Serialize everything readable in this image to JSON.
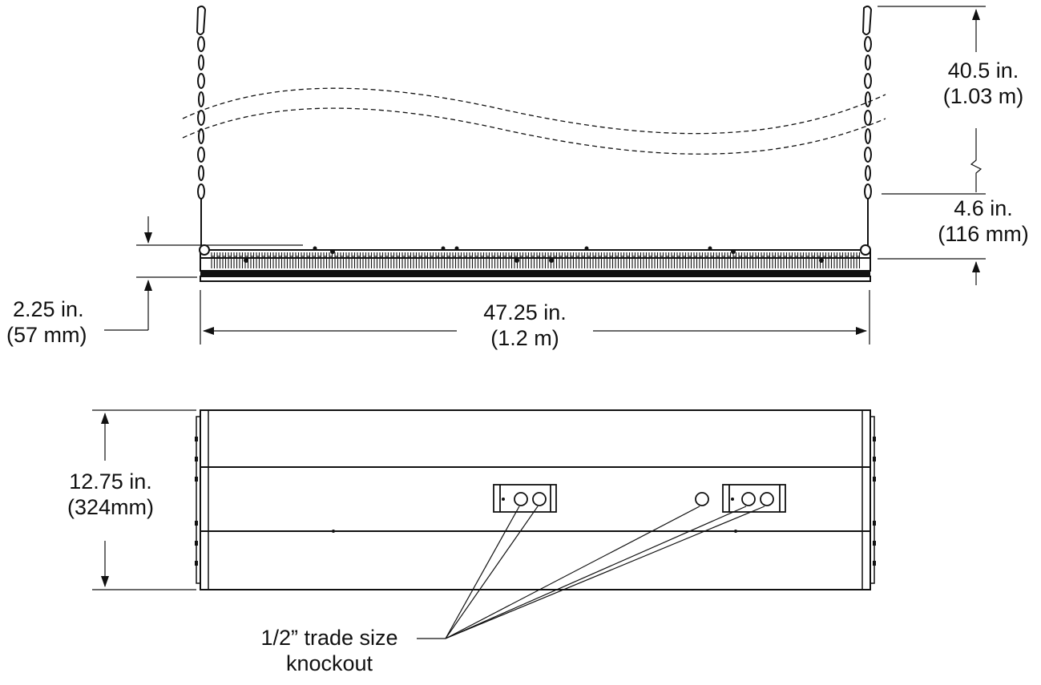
{
  "dimensions": {
    "chain_length": {
      "imperial": "40.5 in.",
      "metric": "(1.03 m)"
    },
    "hook_height": {
      "imperial": "4.6 in.",
      "metric": "(116 mm)"
    },
    "fixture_height": {
      "imperial": "2.25 in.",
      "metric": "(57 mm)"
    },
    "fixture_length": {
      "imperial": "47.25 in.",
      "metric": "(1.2 m)"
    },
    "fixture_width": {
      "imperial": "12.75 in.",
      "metric": "(324mm)"
    }
  },
  "callout": {
    "line1": "1/2” trade size",
    "line2": "knockout"
  }
}
